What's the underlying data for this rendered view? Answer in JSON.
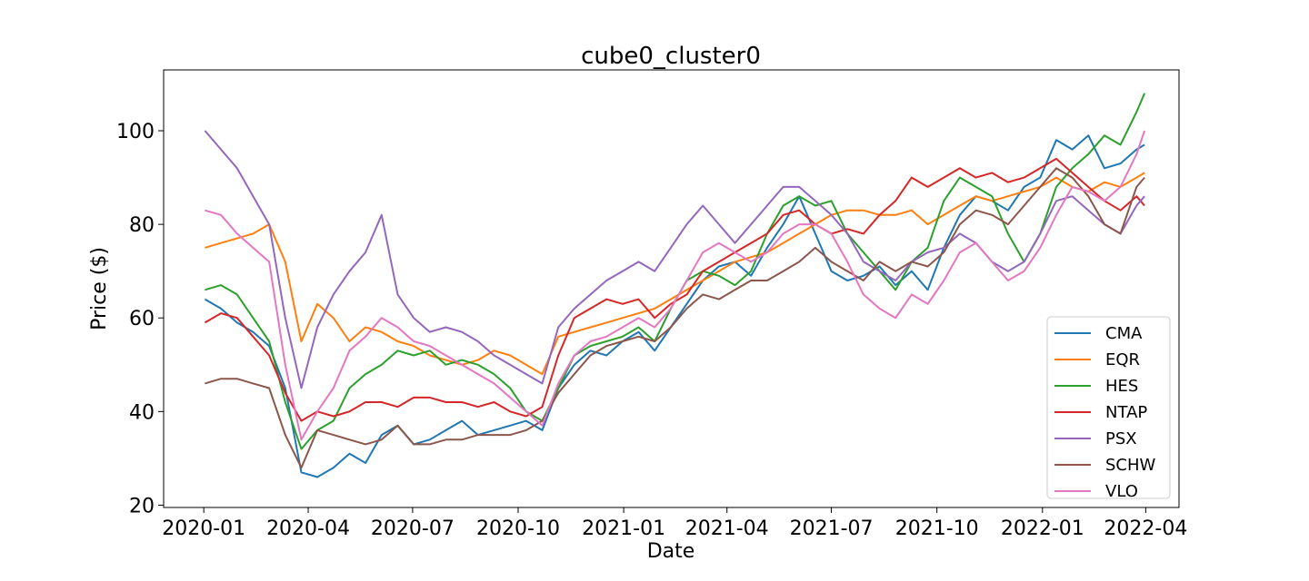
{
  "chart_data": {
    "type": "line",
    "title": "cube0_cluster0",
    "xlabel": "Date",
    "ylabel": "Price ($)",
    "x_ticks": [
      "2020-01",
      "2020-04",
      "2020-07",
      "2020-10",
      "2021-01",
      "2021-04",
      "2021-07",
      "2021-10",
      "2022-01",
      "2022-04"
    ],
    "y_ticks": [
      20,
      40,
      60,
      80,
      100
    ],
    "xlim": [
      "2019-11-27",
      "2022-04-30"
    ],
    "ylim": [
      19.5,
      113
    ],
    "legend_position": "lower-right",
    "grid": false,
    "dates": [
      "2020-01-02",
      "2020-01-16",
      "2020-01-30",
      "2020-02-13",
      "2020-02-27",
      "2020-03-12",
      "2020-03-26",
      "2020-04-09",
      "2020-04-23",
      "2020-05-07",
      "2020-05-21",
      "2020-06-04",
      "2020-06-18",
      "2020-07-02",
      "2020-07-16",
      "2020-07-30",
      "2020-08-13",
      "2020-08-27",
      "2020-09-10",
      "2020-09-24",
      "2020-10-08",
      "2020-10-22",
      "2020-11-05",
      "2020-11-19",
      "2020-12-03",
      "2020-12-17",
      "2020-12-31",
      "2021-01-14",
      "2021-01-28",
      "2021-02-11",
      "2021-02-25",
      "2021-03-11",
      "2021-03-25",
      "2021-04-08",
      "2021-04-22",
      "2021-05-06",
      "2021-05-20",
      "2021-06-03",
      "2021-06-17",
      "2021-07-01",
      "2021-07-15",
      "2021-07-29",
      "2021-08-12",
      "2021-08-26",
      "2021-09-09",
      "2021-09-23",
      "2021-10-07",
      "2021-10-21",
      "2021-11-04",
      "2021-11-18",
      "2021-12-02",
      "2021-12-16",
      "2021-12-30",
      "2022-01-13",
      "2022-01-27",
      "2022-02-10",
      "2022-02-24",
      "2022-03-10",
      "2022-03-24",
      "2022-03-31"
    ],
    "series": [
      {
        "name": "CMA",
        "color": "#1f77b4",
        "values": [
          64,
          62,
          59,
          57,
          54,
          45,
          27,
          26,
          28,
          31,
          29,
          35,
          37,
          33,
          34,
          36,
          38,
          35,
          36,
          37,
          38,
          36,
          45,
          50,
          53,
          52,
          55,
          57,
          53,
          58,
          63,
          68,
          71,
          72,
          69,
          75,
          80,
          86,
          78,
          70,
          68,
          69,
          71,
          67,
          70,
          66,
          75,
          82,
          86,
          85,
          83,
          88,
          90,
          98,
          96,
          99,
          92,
          93,
          96,
          97
        ]
      },
      {
        "name": "EQR",
        "color": "#ff7f0e",
        "values": [
          75,
          76,
          77,
          78,
          80,
          72,
          55,
          63,
          60,
          55,
          58,
          57,
          55,
          54,
          52,
          51,
          50,
          51,
          53,
          52,
          50,
          48,
          56,
          57,
          58,
          59,
          60,
          61,
          62,
          64,
          66,
          68,
          70,
          72,
          73,
          74,
          76,
          78,
          80,
          82,
          83,
          83,
          82,
          82,
          83,
          80,
          82,
          84,
          86,
          85,
          86,
          87,
          88,
          90,
          88,
          87,
          89,
          88,
          90,
          91
        ]
      },
      {
        "name": "HES",
        "color": "#2ca02c",
        "values": [
          66,
          67,
          65,
          60,
          55,
          42,
          32,
          36,
          38,
          45,
          48,
          50,
          53,
          52,
          53,
          50,
          51,
          50,
          48,
          45,
          40,
          38,
          45,
          52,
          54,
          55,
          56,
          58,
          55,
          62,
          68,
          70,
          69,
          67,
          70,
          78,
          84,
          86,
          84,
          85,
          78,
          74,
          70,
          66,
          72,
          75,
          85,
          90,
          88,
          86,
          78,
          72,
          78,
          88,
          92,
          95,
          99,
          97,
          104,
          108
        ]
      },
      {
        "name": "NTAP",
        "color": "#d62728",
        "values": [
          59,
          61,
          60,
          56,
          52,
          44,
          38,
          40,
          39,
          40,
          42,
          42,
          41,
          43,
          43,
          42,
          42,
          41,
          42,
          40,
          39,
          41,
          52,
          60,
          62,
          64,
          63,
          64,
          60,
          63,
          65,
          70,
          72,
          74,
          76,
          78,
          82,
          83,
          80,
          78,
          79,
          78,
          82,
          85,
          90,
          88,
          90,
          92,
          90,
          91,
          89,
          90,
          92,
          94,
          91,
          88,
          85,
          83,
          86,
          84
        ]
      },
      {
        "name": "PSX",
        "color": "#9467bd",
        "values": [
          100,
          96,
          92,
          86,
          80,
          60,
          45,
          58,
          65,
          70,
          74,
          82,
          65,
          60,
          57,
          58,
          57,
          55,
          52,
          50,
          48,
          46,
          58,
          62,
          65,
          68,
          70,
          72,
          70,
          75,
          80,
          84,
          80,
          76,
          80,
          84,
          88,
          88,
          85,
          82,
          78,
          72,
          70,
          68,
          72,
          74,
          75,
          78,
          76,
          72,
          70,
          72,
          78,
          85,
          86,
          83,
          80,
          78,
          84,
          86
        ]
      },
      {
        "name": "SCHW",
        "color": "#8c564b",
        "values": [
          46,
          47,
          47,
          46,
          45,
          35,
          28,
          36,
          35,
          34,
          33,
          34,
          37,
          33,
          33,
          34,
          34,
          35,
          35,
          35,
          36,
          38,
          44,
          48,
          52,
          54,
          55,
          56,
          55,
          58,
          62,
          65,
          64,
          66,
          68,
          68,
          70,
          72,
          75,
          72,
          70,
          68,
          72,
          70,
          72,
          71,
          74,
          80,
          83,
          82,
          80,
          84,
          88,
          92,
          90,
          86,
          80,
          78,
          88,
          90
        ]
      },
      {
        "name": "VLO",
        "color": "#e377c2",
        "values": [
          83,
          82,
          78,
          75,
          72,
          50,
          34,
          40,
          45,
          53,
          56,
          60,
          58,
          55,
          54,
          52,
          50,
          48,
          46,
          43,
          40,
          37,
          46,
          52,
          55,
          56,
          58,
          60,
          58,
          62,
          68,
          74,
          76,
          74,
          72,
          74,
          78,
          80,
          80,
          78,
          72,
          65,
          62,
          60,
          65,
          63,
          68,
          74,
          76,
          72,
          68,
          70,
          75,
          82,
          88,
          87,
          85,
          88,
          95,
          100
        ]
      }
    ]
  }
}
